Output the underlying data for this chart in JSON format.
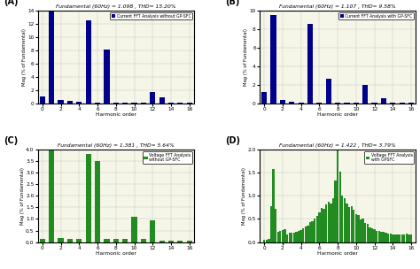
{
  "title_A": "Fundamental (60Hz) = 1.098 , THD= 15.20%",
  "title_B": "Fundamental (60Hz) = 1.107 , THD= 9.58%",
  "title_C": "Fundamental (60Hz) = 1.381 , THD= 5.64%",
  "title_D": "Fundamental (60Hz) = 1.422 , THD= 3.79%",
  "legend_A": "Current FFT Analysis without GP-SFC",
  "legend_B": "Current FFT Analysis with GP-SFC",
  "legend_C": "Voltage FFT Analysis\nwithout GP-SFC",
  "legend_D": "Voltage FFT Analysis\nwith GPSFC",
  "label_A": "(A)",
  "label_B": "(B)",
  "label_C": "(C)",
  "label_D": "(D)",
  "color_current": "#00008B",
  "color_voltage": "#228B22",
  "xlabel": "Harmonic order",
  "ylabel": "Mag (% of Fundamental)",
  "xlim": [
    -0.5,
    16.5
  ],
  "harmonics_A": [
    0,
    1,
    2,
    3,
    4,
    5,
    6,
    7,
    8,
    9,
    10,
    11,
    12,
    13,
    14,
    15,
    16
  ],
  "values_A": [
    1.0,
    14.0,
    0.45,
    0.3,
    0.2,
    12.5,
    0.15,
    8.1,
    0.1,
    0.1,
    0.1,
    0.1,
    1.7,
    0.85,
    0.05,
    0.05,
    0.05
  ],
  "harmonics_B": [
    0,
    1,
    2,
    3,
    4,
    5,
    6,
    7,
    8,
    9,
    10,
    11,
    12,
    13,
    14,
    15,
    16
  ],
  "values_B": [
    1.2,
    9.5,
    0.35,
    0.15,
    0.1,
    8.6,
    0.1,
    2.7,
    0.1,
    0.1,
    0.1,
    2.0,
    0.1,
    0.55,
    0.05,
    0.05,
    0.05
  ],
  "harmonics_C": [
    0,
    1,
    2,
    3,
    4,
    5,
    6,
    7,
    8,
    9,
    10,
    11,
    12,
    13,
    14,
    15,
    16
  ],
  "values_C": [
    0.12,
    4.0,
    0.18,
    0.12,
    0.12,
    3.8,
    3.5,
    0.12,
    0.12,
    0.12,
    1.1,
    0.12,
    0.95,
    0.08,
    0.05,
    0.05,
    0.05
  ],
  "ylim_A": [
    0,
    14
  ],
  "ylim_B": [
    0,
    10
  ],
  "ylim_C": [
    0,
    4.0
  ],
  "ylim_D": [
    0,
    2.0
  ],
  "yticks_A": [
    0,
    2,
    4,
    6,
    8,
    10,
    12,
    14
  ],
  "yticks_B": [
    0,
    2,
    4,
    6,
    8,
    10
  ],
  "yticks_C": [
    0,
    0.5,
    1.0,
    1.5,
    2.0,
    2.5,
    3.0,
    3.5,
    4.0
  ],
  "yticks_D": [
    0,
    0.5,
    1.0,
    1.5,
    2.0
  ],
  "xticks": [
    0,
    2,
    4,
    6,
    8,
    10,
    12,
    14,
    16
  ],
  "background_color": "#f5f5e8"
}
